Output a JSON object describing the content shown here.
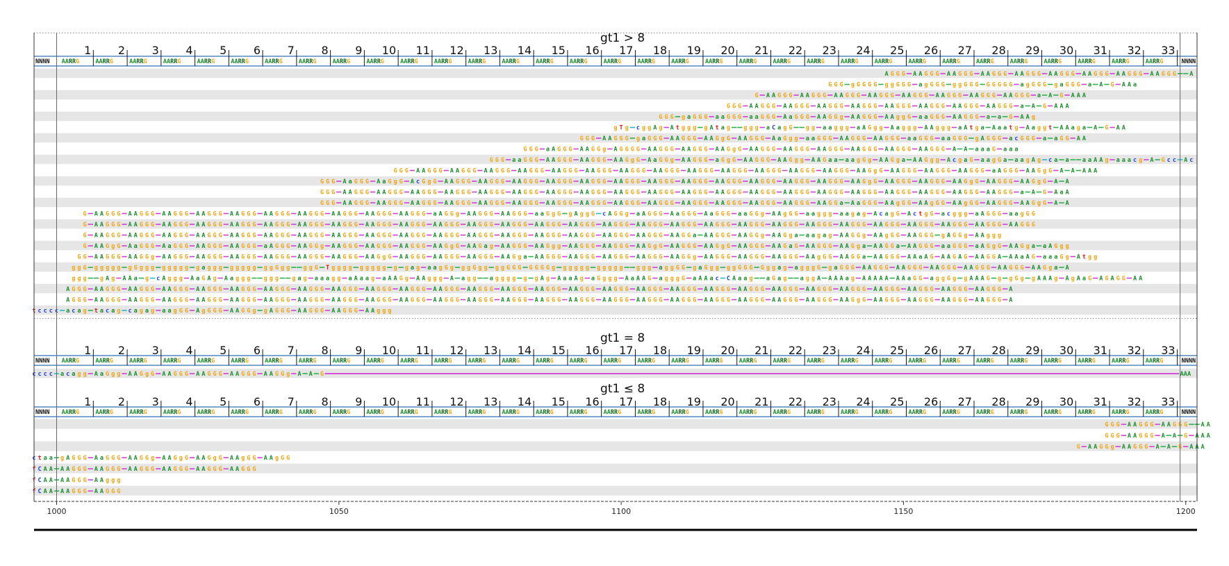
{
  "colors": {
    "A": "#1a8f2b",
    "G": "#f2a50c",
    "C": "#1c3fd6",
    "T": "#d81b1b",
    "N": "#111111",
    "band": "#e6e6e6",
    "header_line": "#2f6fb5",
    "link_g": "#2ab24a",
    "link_m": "#d63bd6",
    "link_c": "#25b9c8"
  },
  "x_axis": {
    "range": [
      996,
      1202
    ],
    "ticks": [
      1000,
      1050,
      1100,
      1150,
      1200
    ],
    "tick_labels": [
      "1000",
      "1050",
      "1100",
      "1150",
      "1200"
    ],
    "vlines": [
      1000,
      1199
    ]
  },
  "repeat": {
    "start": 1001,
    "period": 6,
    "count": 33,
    "cell": "AARRG",
    "flank": "NNNN"
  },
  "sections": [
    {
      "title": "gt1 > 8",
      "rows": [
        {
          "start": 1147,
          "seq": "AGGG-AAGGG-AAGGG-AAGGG-AAGGG-AAGGG-AAGGG-AAGGG-AAGGG--A"
        },
        {
          "start": 1137,
          "seq": "GGG-gGGGG-ggGGG-agGGG-ggGGG-GGGGG-agGGG-gaGGG-a-A-G-AAa"
        },
        {
          "start": 1124,
          "seq": "G-AAGGG-AAGGG-AAGGG-AAGGG-AAGGG-AAGGG-AAGGG-AAGGG-a-A-G-AAA"
        },
        {
          "start": 1119,
          "seq": "GGG-AAGGG-AAGGG-AAGGG-AAGGG-AAGGG-AAGGG-AAGGG-AAGGG-a-A-G-AAA"
        },
        {
          "start": 1107,
          "seq": "GGG-gaGGG-aaGGG-aaGGG-AaGGG-AAGGg-AAGGG-AAggG-aaGGG-AAGGG-a-a-G-AAg"
        },
        {
          "start": 1099,
          "seq": "gTg-cggAg-Atggg-gAtag--ggg-aCagG--gg-aaggg-aAGgg-Aaggg-AAggg-aAtga-Aaatg-Aaggt-AAaga-A-G-AA"
        },
        {
          "start": 1093,
          "seq": "GGG-AAGGG-gaGGG-AAGGG-AAGgG-AAGGG-AaGgg-aaGGG-AAGGG-AAGGG-aaGGG-aaGGG-gAGGG-acGGG-a-aGG-AA"
        },
        {
          "start": 1083,
          "seq": "GGG-aAGGG-AAGGg-AGGGG-AAGGG-AAGGG-AAGgG-AAGGG-AAGGG-AAGGG-AAGGG-AAGGG-AAGGG-A-A-aaaG-aaa"
        },
        {
          "start": 1077,
          "seq": "GGG-aaGGG-AAGGG-AAGGG-AAGgG-AaGGg-AAGGG-aGgG-AAGGG-AAGgg-AAGaa-aagGg-AAGga-AAGgg-AcgaG-aagGa-aagAg-ca-a--aaAAg-aaacg-A-Gcc-Ac"
        },
        {
          "start": 1060,
          "seq": "GGG-AAGGG-AAGGG-AAGGG-AAGGG-AAGGG-AAGGG-AAGGG-AAGGG-AAGGG-AAGGG-AAGGG-AAGGG-AAGGG-AAGgG-AAGGG-AAGGG-AAGGG-aAGGG-AAGgG-A-A-AAA"
        },
        {
          "start": 1047,
          "seq": "GGG-AaGGG-AaGgG-AcGgG-AAGGG-AAGGG-AAGGG-AAGGG-AAGGG-AAGGG-AAGGG-AAGGG-AAGGG-AAGGG-AAGGG-AAGGG-AAGgG-AAGGG-AAGGG-AAGgG-AAGGG-AAGgG-A-A"
        },
        {
          "start": 1047,
          "seq": "GGG-AAGGG-AAGGG-AAGGG-AAGGG-AAGGG-AAGGG-AAGGG-AAGGG-AAGGG-AAGGG-AAGGG-AAGGG-AAGGG-AAGGG-AAGGG-AAGGG-AAGGG-AAGGG-AAGGG-AAGGG-a-A-G-AaA"
        },
        {
          "start": 1047,
          "seq": "GGG-AAGGG-AAGGG-AAGGG-AAGGG-AAGGG-AAGGG-AAGGG-AAGGG-AAGGG-AAGGG-AAGGG-AAGGG-AAGGG-AAGGG-AAGGa-AaGGG-AAgGG-AAgGG-AAgGG-AAGGG-AAGgG-A-A"
        },
        {
          "start": 1005,
          "seq": "G-AAGGG-AAGGG-AAGGG-AAGGG-AAGGG-AAGGG-AAGGG-AAGGG-AAGGG-AAGGG-aAGGg-AAGGG-AAGGG-aaGgG-gAggG-cAGGg-aAGGG-AaGGG-AaGGG-aaGGg-AAgGG-aaggg-aagag-AcagG-ActgG-acggg-aAGGG-aagGG"
        },
        {
          "start": 1005,
          "seq": "G-AAGGG-AAGGG-AAGGG-AAGGG-AAGGG-AAGGG-AAGGG-AAGGG-AAGGG-AAGGG-AAGGG-AAGGG-AAGGG-AAGGG-AAGGG-AAGGG-AAGGG-AAGGG-AAGGG-AAGGG-AAGGG-AAGGG-AAGGG-AAGGG-AAGGG-AAGGG-AAGGG-AAGGG"
        },
        {
          "start": 1005,
          "seq": "G-AAGGG-AAGGG-AAGGG-AAGGG-AAGGG-AAGGG-AAGGG-AAGGG-AAGGG-AAGGG-AAGGG-AAGGG-AAGGG-AAGGG-AAGGG-AAGGG-AAGGG-AAGGa-AAGGG-AAGGg-AAGga-aagag-AAGGg-AAgGG-AAGGG-gAGGg-AAggg"
        },
        {
          "start": 1005,
          "seq": "G-AAGgG-AaGGG-AaGGG-AAGGG-AAGGG-aAGGG-AAGGg-AAGGG-AAGGG-AAGGG-AAGgG-AAGag-AAGGG-AAGgg-AAGGG-AAGGG-AAGgG-AAGGG-AAGgG-AAGGG-AAGaG-AAGGG-AAGga-AAGGa-AAGGG-aaGGG-aAGgG-AAGga-aAGgg"
        },
        {
          "start": 1004,
          "seq": "GG-AAGGG-AAGGg-AAGGG-AAGGG-AAGGG-AAGGG-AAGGG-AAGGG-AAGgG-AAGGG-AAGGG-AAGGG-AAGga-AAGGG-AAGGG-AAGGG-AAGGG-AAGGg-AAGGG-AAGGG-AAGGG-AAgGG-AAGGa-AAGGG-AAaAG-AAGAG-AAGGA-AAaAG-aaaGg-Atgg"
        },
        {
          "start": 1003,
          "seq": "ggG-ggggg-gGggg-ggggg-gaggg-ggggg-ggGgg--ggG-Tgggg-ggggg-g-gag-aagGg-ggGgg-ggGGG-GGGGg-ggggg-ggggg--ggg-aggGG-gaGgg-ggGGG-Gggag-agggG-gaGGG-AAGGG-AAGGG-AAGGG-AAGGG-AAGGG-AAGga-A"
        },
        {
          "start": 1003,
          "seq": "ggg--gAg-AAa-g-cAggg-AaGAg-Aaggg--ggg--gag-aaagg-aAaag-aAAGg-AAggg-A-agg--agggg-g-gAg-AaaAg-aGggg-AaAAG-agggG-aAAac-CAaag--aGag--aggA-AAAag-AAAAA-AAaGG-aggGg-gAAAG-g-gGg-gAAAg-AgAaG-AGAGG-AA"
        },
        {
          "start": 1002,
          "seq": "AGGG-AAGGG-AAGGG-AAGGG-AAGGG-AAGGG-AAGGG-AAGGG-AAGGG-AAGGG-AAGGG-AAGGG-AAGGG-AAGGG-AAGGG-AAGGG-AAGGG-AAGGG-AAGGG-AAGGG-AAGGG-AAGGG-AAGGG-AAGGG-AAGGG-AAGGG-AAGGG-AAGGG-A"
        },
        {
          "start": 1002,
          "seq": "AGGG-AAGGG-AAGGG-AAGGG-AAGGG-AAGGG-AAGGG-AAGGG-AAGGG-AAGGG-AAGGG-AAGGG-AAGGG-AAGGG-AAGGG-AAGGG-AAGGG-AAGGG-AAGGG-AAGGG-AAGGG-AAGGG-AAGGG-AAGgG-AAGGG-AAGGG-AAGGG-AAGGG-A"
        },
        {
          "start": 996,
          "seq": "tcccc-acag-tacag-cagag-aagGG-AgGGG-AAGGg-gAGGG-AAGGG-AAGGG-AAggg"
        }
      ]
    },
    {
      "title": "gt1 = 8",
      "rows": [
        {
          "start": 996,
          "seq": "cccc-acagg-AaGgg-AAGgG-AAGGG-AAGGG-AAGGG-AAGGg-A-A-G",
          "tail": "AAA"
        }
      ]
    },
    {
      "title": "gt1 ≤ 8",
      "rows": [
        {
          "start": 1186,
          "seq": "GGG-AAGGG-AAGGG--AA"
        },
        {
          "start": 1186,
          "seq": "GGG-AAGGG-A-A-G-AAA"
        },
        {
          "start": 1181,
          "seq": "G-AAGGg-AAGGG-A-A-G-AAA"
        },
        {
          "start": 996,
          "seq": "ctaa-gAGGG-AaGGG-AAGGg-AAGgG-AAGgG-AAgGG-AAgGG"
        },
        {
          "start": 996,
          "seq": "fCAA-AAGGG-AAGGG-AAGGG-AAGGG-AAGGG-AAGGG"
        },
        {
          "start": 996,
          "seq": "fCAA-AAGGG-AAggg"
        },
        {
          "start": 996,
          "seq": "fCAA-AAGGG-AAGGG"
        }
      ]
    }
  ]
}
